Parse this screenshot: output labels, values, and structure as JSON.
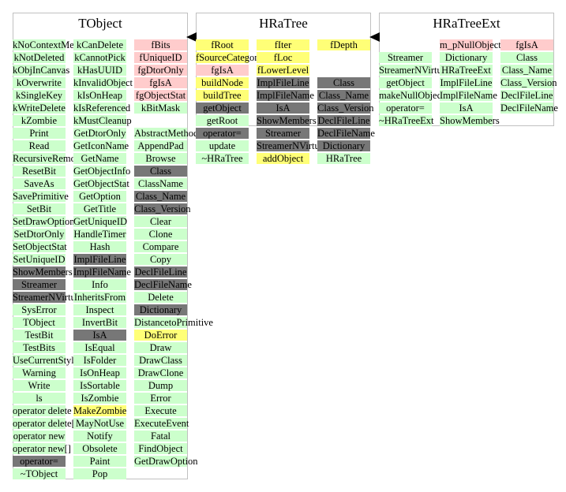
{
  "colors": {
    "green": "#ccffcc",
    "pink": "#ffcccc",
    "yellow": "#ffff77",
    "gray": "#777777",
    "border": "#c0c0c0"
  },
  "panels": [
    {
      "title": "TObject",
      "columns": [
        [
          {
            "t": "kNoContextMenu",
            "c": "green"
          },
          {
            "t": "kNotDeleted",
            "c": "green"
          },
          {
            "t": "kObjInCanvas",
            "c": "green"
          },
          {
            "t": "kOverwrite",
            "c": "green"
          },
          {
            "t": "kSingleKey",
            "c": "green"
          },
          {
            "t": "kWriteDelete",
            "c": "green"
          },
          {
            "t": "kZombie",
            "c": "green"
          },
          {
            "t": "Print",
            "c": "green"
          },
          {
            "t": "Read",
            "c": "green"
          },
          {
            "t": "RecursiveRemove",
            "c": "green"
          },
          {
            "t": "ResetBit",
            "c": "green"
          },
          {
            "t": "SaveAs",
            "c": "green"
          },
          {
            "t": "SavePrimitive",
            "c": "green"
          },
          {
            "t": "SetBit",
            "c": "green"
          },
          {
            "t": "SetDrawOption",
            "c": "green"
          },
          {
            "t": "SetDtorOnly",
            "c": "green"
          },
          {
            "t": "SetObjectStat",
            "c": "green"
          },
          {
            "t": "SetUniqueID",
            "c": "green"
          },
          {
            "t": "ShowMembers",
            "c": "gray"
          },
          {
            "t": "Streamer",
            "c": "gray"
          },
          {
            "t": "StreamerNVirtual",
            "c": "gray"
          },
          {
            "t": "SysError",
            "c": "green"
          },
          {
            "t": "TObject",
            "c": "green"
          },
          {
            "t": "TestBit",
            "c": "green"
          },
          {
            "t": "TestBits",
            "c": "green"
          },
          {
            "t": "UseCurrentStyle",
            "c": "green"
          },
          {
            "t": "Warning",
            "c": "green"
          },
          {
            "t": "Write",
            "c": "green"
          },
          {
            "t": "ls",
            "c": "green"
          },
          {
            "t": "operator delete",
            "c": "green"
          },
          {
            "t": "operator delete[]",
            "c": "green"
          },
          {
            "t": "operator new",
            "c": "green"
          },
          {
            "t": "operator new[]",
            "c": "green"
          },
          {
            "t": "operator=",
            "c": "gray"
          },
          {
            "t": "~TObject",
            "c": "green"
          }
        ],
        [
          {
            "t": "kCanDelete",
            "c": "green"
          },
          {
            "t": "kCannotPick",
            "c": "green"
          },
          {
            "t": "kHasUUID",
            "c": "green"
          },
          {
            "t": "kInvalidObject",
            "c": "green"
          },
          {
            "t": "kIsOnHeap",
            "c": "green"
          },
          {
            "t": "kIsReferenced",
            "c": "green"
          },
          {
            "t": "kMustCleanup",
            "c": "green"
          },
          {
            "t": "GetDtorOnly",
            "c": "green"
          },
          {
            "t": "GetIconName",
            "c": "green"
          },
          {
            "t": "GetName",
            "c": "green"
          },
          {
            "t": "GetObjectInfo",
            "c": "green"
          },
          {
            "t": "GetObjectStat",
            "c": "green"
          },
          {
            "t": "GetOption",
            "c": "green"
          },
          {
            "t": "GetTitle",
            "c": "green"
          },
          {
            "t": "GetUniqueID",
            "c": "green"
          },
          {
            "t": "HandleTimer",
            "c": "green"
          },
          {
            "t": "Hash",
            "c": "green"
          },
          {
            "t": "ImplFileLine",
            "c": "gray"
          },
          {
            "t": "ImplFileName",
            "c": "gray"
          },
          {
            "t": "Info",
            "c": "green"
          },
          {
            "t": "InheritsFrom",
            "c": "green"
          },
          {
            "t": "Inspect",
            "c": "green"
          },
          {
            "t": "InvertBit",
            "c": "green"
          },
          {
            "t": "IsA",
            "c": "gray"
          },
          {
            "t": "IsEqual",
            "c": "green"
          },
          {
            "t": "IsFolder",
            "c": "green"
          },
          {
            "t": "IsOnHeap",
            "c": "green"
          },
          {
            "t": "IsSortable",
            "c": "green"
          },
          {
            "t": "IsZombie",
            "c": "green"
          },
          {
            "t": "MakeZombie",
            "c": "yellow"
          },
          {
            "t": "MayNotUse",
            "c": "green"
          },
          {
            "t": "Notify",
            "c": "green"
          },
          {
            "t": "Obsolete",
            "c": "green"
          },
          {
            "t": "Paint",
            "c": "green"
          },
          {
            "t": "Pop",
            "c": "green"
          }
        ],
        [
          {
            "t": "fBits",
            "c": "pink"
          },
          {
            "t": "fUniqueID",
            "c": "pink"
          },
          {
            "t": "fgDtorOnly",
            "c": "pink"
          },
          {
            "t": "fgIsA",
            "c": "pink"
          },
          {
            "t": "fgObjectStat",
            "c": "pink"
          },
          {
            "t": "kBitMask",
            "c": "green"
          },
          {
            "t": "",
            "c": "none"
          },
          {
            "t": "AbstractMethod",
            "c": "green"
          },
          {
            "t": "AppendPad",
            "c": "green"
          },
          {
            "t": "Browse",
            "c": "green"
          },
          {
            "t": "Class",
            "c": "gray"
          },
          {
            "t": "ClassName",
            "c": "green"
          },
          {
            "t": "Class_Name",
            "c": "gray"
          },
          {
            "t": "Class_Version",
            "c": "gray"
          },
          {
            "t": "Clear",
            "c": "green"
          },
          {
            "t": "Clone",
            "c": "green"
          },
          {
            "t": "Compare",
            "c": "green"
          },
          {
            "t": "Copy",
            "c": "green"
          },
          {
            "t": "DeclFileLine",
            "c": "gray"
          },
          {
            "t": "DeclFileName",
            "c": "gray"
          },
          {
            "t": "Delete",
            "c": "green"
          },
          {
            "t": "Dictionary",
            "c": "gray"
          },
          {
            "t": "DistancetoPrimitive",
            "c": "green"
          },
          {
            "t": "DoError",
            "c": "yellow"
          },
          {
            "t": "Draw",
            "c": "green"
          },
          {
            "t": "DrawClass",
            "c": "green"
          },
          {
            "t": "DrawClone",
            "c": "green"
          },
          {
            "t": "Dump",
            "c": "green"
          },
          {
            "t": "Error",
            "c": "green"
          },
          {
            "t": "Execute",
            "c": "green"
          },
          {
            "t": "ExecuteEvent",
            "c": "green"
          },
          {
            "t": "Fatal",
            "c": "green"
          },
          {
            "t": "FindObject",
            "c": "green"
          },
          {
            "t": "GetDrawOption",
            "c": "green"
          }
        ]
      ]
    },
    {
      "title": "HRaTree",
      "columns": [
        [
          {
            "t": "fRoot",
            "c": "yellow"
          },
          {
            "t": "fSourceCategory",
            "c": "yellow"
          },
          {
            "t": "fgIsA",
            "c": "pink"
          },
          {
            "t": "buildNode",
            "c": "yellow"
          },
          {
            "t": "buildTree",
            "c": "yellow"
          },
          {
            "t": "getObject",
            "c": "gray"
          },
          {
            "t": "getRoot",
            "c": "green"
          },
          {
            "t": "operator=",
            "c": "gray"
          },
          {
            "t": "update",
            "c": "green"
          },
          {
            "t": "~HRaTree",
            "c": "green"
          }
        ],
        [
          {
            "t": "fIter",
            "c": "yellow"
          },
          {
            "t": "fLoc",
            "c": "yellow"
          },
          {
            "t": "fLowerLevel",
            "c": "yellow"
          },
          {
            "t": "ImplFileLine",
            "c": "gray"
          },
          {
            "t": "ImplFileName",
            "c": "gray"
          },
          {
            "t": "IsA",
            "c": "gray"
          },
          {
            "t": "ShowMembers",
            "c": "gray"
          },
          {
            "t": "Streamer",
            "c": "gray"
          },
          {
            "t": "StreamerNVirtual",
            "c": "gray"
          },
          {
            "t": "addObject",
            "c": "yellow"
          }
        ],
        [
          {
            "t": "fDepth",
            "c": "yellow"
          },
          {
            "t": "",
            "c": "none"
          },
          {
            "t": "",
            "c": "none"
          },
          {
            "t": "Class",
            "c": "gray"
          },
          {
            "t": "Class_Name",
            "c": "gray"
          },
          {
            "t": "Class_Version",
            "c": "gray"
          },
          {
            "t": "DeclFileLine",
            "c": "gray"
          },
          {
            "t": "DeclFileName",
            "c": "gray"
          },
          {
            "t": "Dictionary",
            "c": "gray"
          },
          {
            "t": "HRaTree",
            "c": "green"
          }
        ]
      ]
    },
    {
      "title": "HRaTreeExt",
      "columns": [
        [
          {
            "t": "",
            "c": "none"
          },
          {
            "t": "Streamer",
            "c": "green"
          },
          {
            "t": "StreamerNVirtual",
            "c": "green"
          },
          {
            "t": "getObject",
            "c": "green"
          },
          {
            "t": "makeNullObject",
            "c": "green"
          },
          {
            "t": "operator=",
            "c": "green"
          },
          {
            "t": "~HRaTreeExt",
            "c": "green"
          }
        ],
        [
          {
            "t": "m_pNullObject",
            "c": "pink"
          },
          {
            "t": "Dictionary",
            "c": "green"
          },
          {
            "t": "HRaTreeExt",
            "c": "green"
          },
          {
            "t": "ImplFileLine",
            "c": "green"
          },
          {
            "t": "ImplFileName",
            "c": "green"
          },
          {
            "t": "IsA",
            "c": "green"
          },
          {
            "t": "ShowMembers",
            "c": "green"
          }
        ],
        [
          {
            "t": "fgIsA",
            "c": "pink"
          },
          {
            "t": "Class",
            "c": "green"
          },
          {
            "t": "Class_Name",
            "c": "green"
          },
          {
            "t": "Class_Version",
            "c": "green"
          },
          {
            "t": "DeclFileLine",
            "c": "green"
          },
          {
            "t": "DeclFileName",
            "c": "green"
          }
        ]
      ]
    }
  ]
}
